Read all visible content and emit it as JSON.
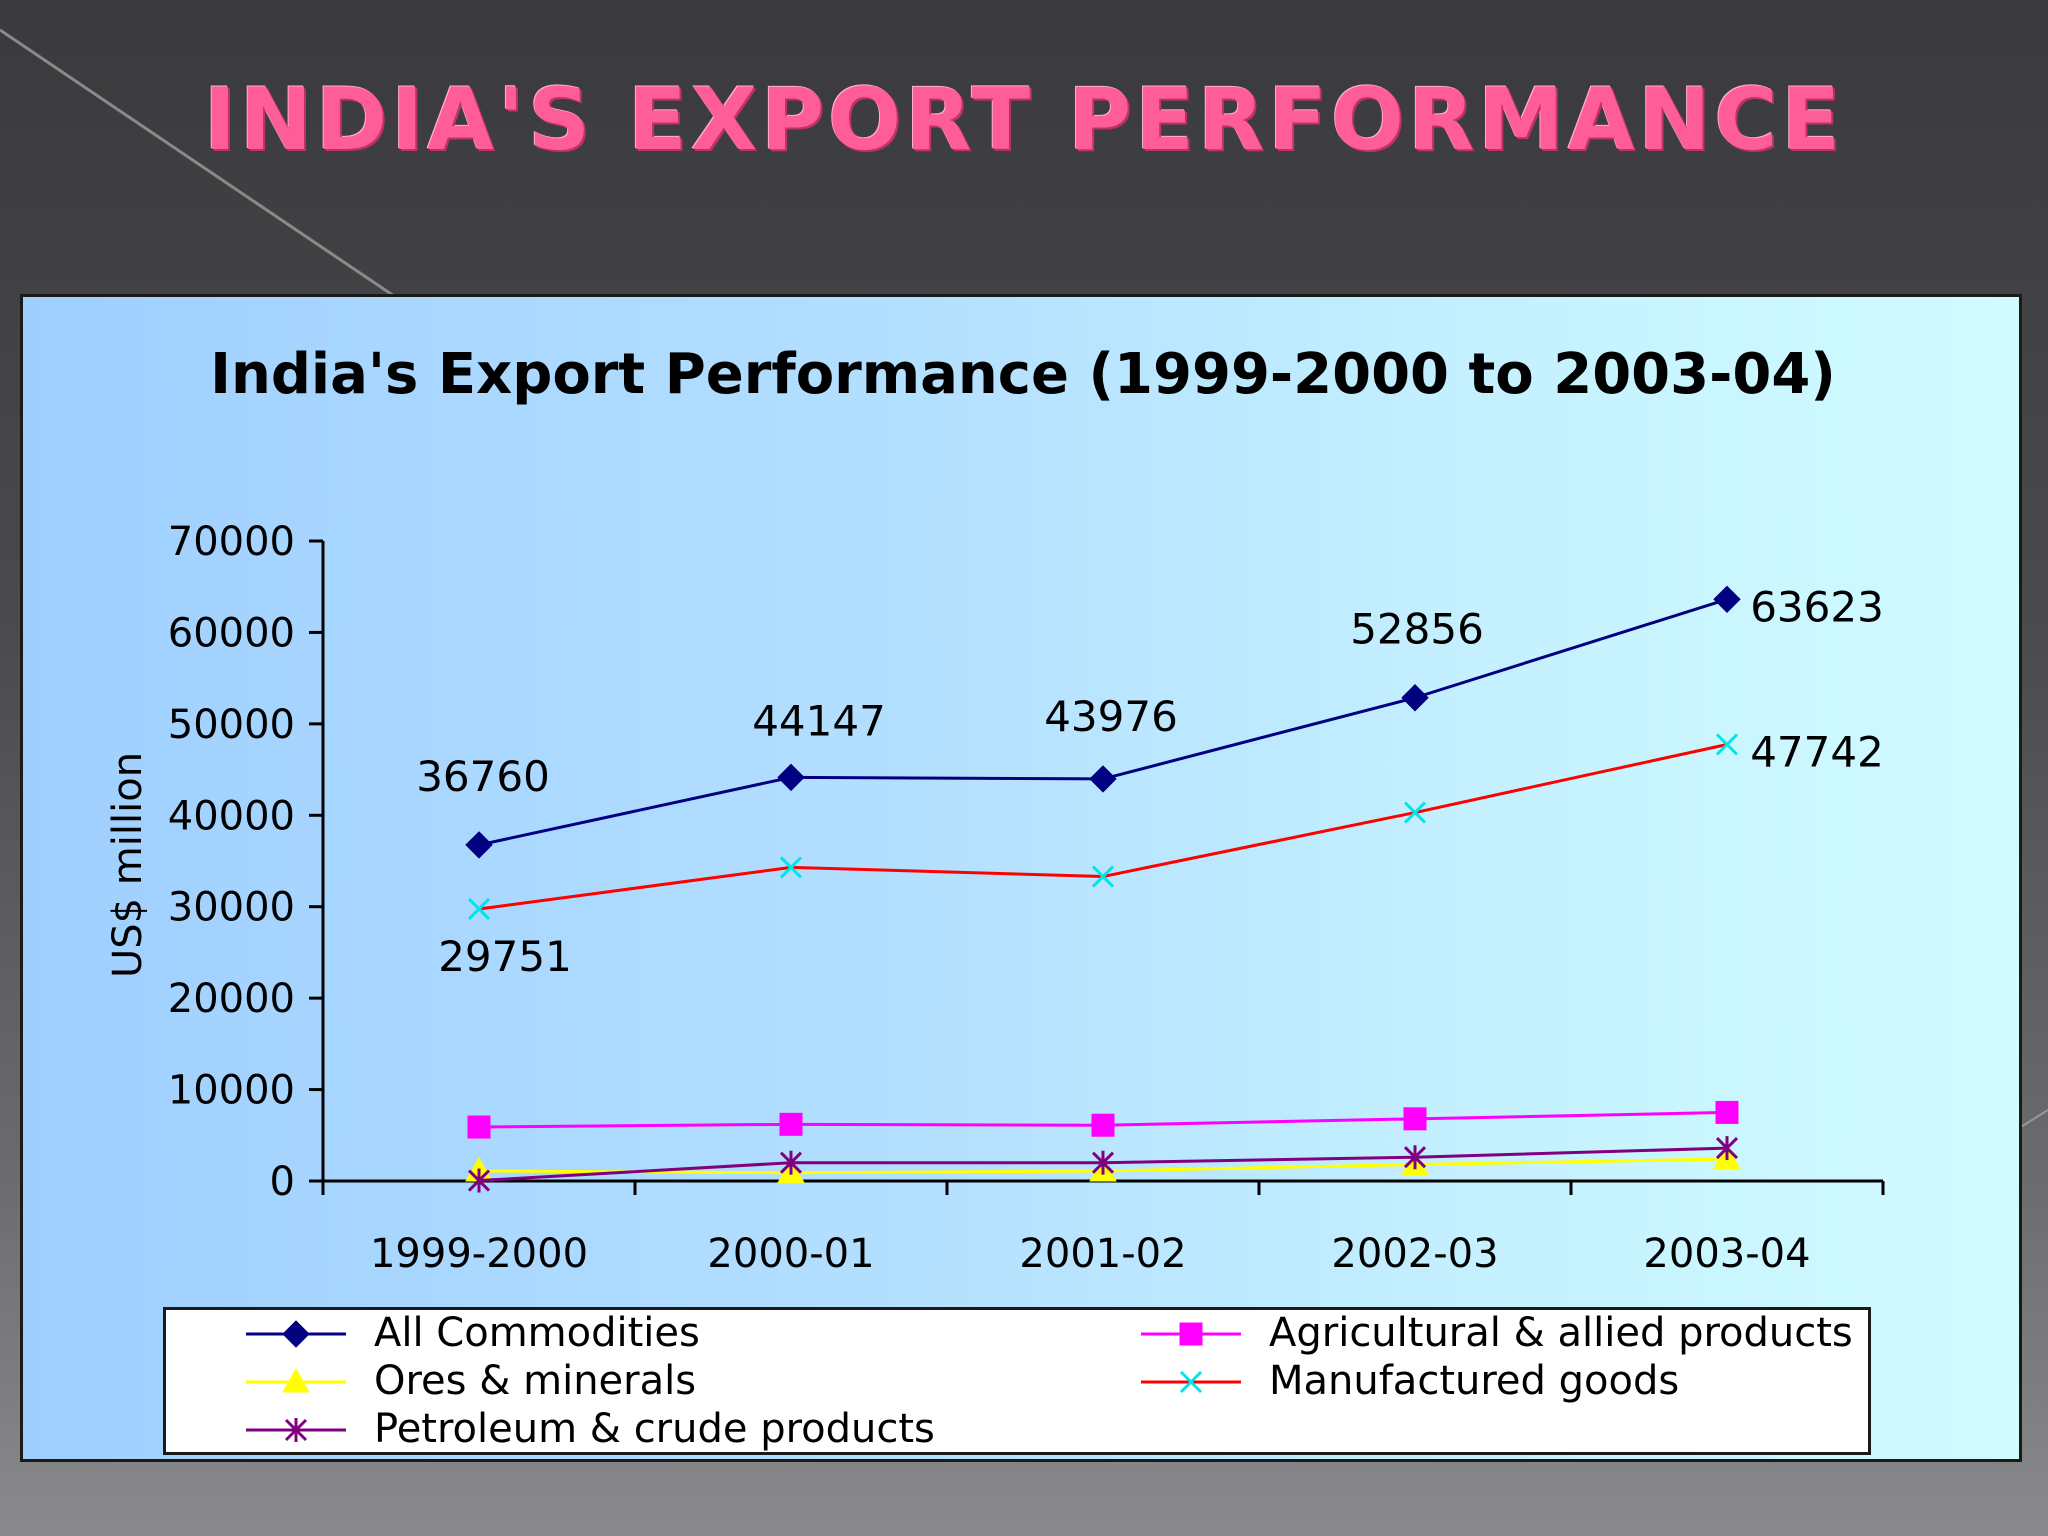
{
  "slide": {
    "title": "INDIA'S EXPORT PERFORMANCE"
  },
  "colors": {
    "title_pink": "#ff5d98",
    "all_commodities": "#000080",
    "agricultural": "#ff00ff",
    "ores": "#ffff00",
    "manufactured": "#ff0000",
    "manufactured_marker": "#00e5e5",
    "petroleum": "#800080"
  },
  "chart_data": {
    "type": "line",
    "title": "India's Export Performance (1999-2000 to 2003-04)",
    "xlabel": "",
    "ylabel": "US$ million",
    "ylim": [
      0,
      70000
    ],
    "yticks": [
      "70000",
      "60000",
      "50000",
      "40000",
      "30000",
      "20000",
      "10000",
      "0"
    ],
    "categories": [
      "1999-2000",
      "2000-01",
      "2001-02",
      "2002-03",
      "2003-04"
    ],
    "series": [
      {
        "name": "All Commodities",
        "values": [
          36760,
          44147,
          43976,
          52856,
          63623
        ],
        "marker": "diamond",
        "color": "#000080",
        "marker_color": "#000080",
        "labels": [
          "36760",
          "44147",
          "43976",
          "52856",
          "63623"
        ]
      },
      {
        "name": "Agricultural & allied products",
        "values": [
          5900,
          6200,
          6100,
          6800,
          7500
        ],
        "marker": "square",
        "color": "#ff00ff",
        "marker_color": "#ff00ff",
        "labels": []
      },
      {
        "name": "Ores & minerals",
        "values": [
          1100,
          900,
          1100,
          1800,
          2400
        ],
        "marker": "triangle",
        "color": "#ffff00",
        "marker_color": "#ffff00",
        "labels": []
      },
      {
        "name": "Manufactured goods",
        "values": [
          29751,
          34300,
          33300,
          40300,
          47742
        ],
        "marker": "x",
        "color": "#ff0000",
        "marker_color": "#00e5e5",
        "labels": [
          "29751",
          "",
          "",
          "",
          "47742"
        ]
      },
      {
        "name": "Petroleum & crude products",
        "values": [
          50,
          2000,
          2000,
          2600,
          3600
        ],
        "marker": "star",
        "color": "#800080",
        "marker_color": "#800080",
        "labels": []
      }
    ],
    "grid": false,
    "legend_position": "bottom"
  }
}
